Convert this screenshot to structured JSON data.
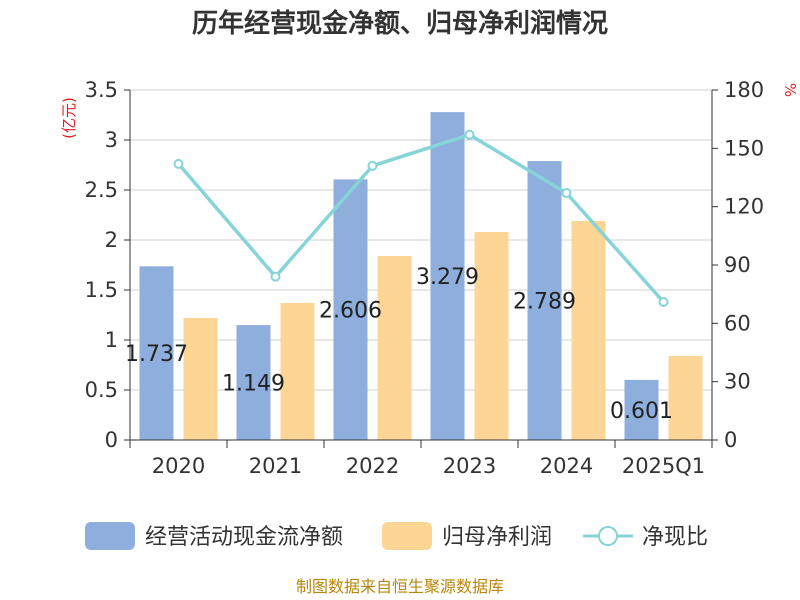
{
  "chart_data": {
    "type": "bar",
    "title": "历年经营现金净额、归母净利润情况",
    "categories": [
      "2020",
      "2021",
      "2022",
      "2023",
      "2024",
      "2025Q1"
    ],
    "series": [
      {
        "name": "经营活动现金流净额",
        "type": "bar",
        "axis": "left",
        "color": "#8eaedd",
        "values": [
          1.737,
          1.149,
          2.606,
          3.279,
          2.789,
          0.601
        ],
        "labels": [
          "1.737",
          "1.149",
          "2.606",
          "3.279",
          "2.789",
          "0.601"
        ]
      },
      {
        "name": "归母净利润",
        "type": "bar",
        "axis": "left",
        "color": "#fdd695",
        "values": [
          1.22,
          1.37,
          1.84,
          2.08,
          2.19,
          0.84
        ]
      },
      {
        "name": "净现比",
        "type": "line",
        "axis": "right",
        "color": "#86d4d8",
        "values": [
          142,
          84,
          141,
          157,
          127,
          71
        ]
      }
    ],
    "ylabel": "(亿元)",
    "ylabel_right": "%",
    "ylim": [
      0,
      3.5
    ],
    "yticks": [
      "0",
      "0.5",
      "1",
      "1.5",
      "2",
      "2.5",
      "3",
      "3.5"
    ],
    "ylim_right": [
      0,
      180
    ],
    "yticks_right": [
      "0",
      "30",
      "60",
      "90",
      "120",
      "150",
      "180"
    ],
    "grid": true,
    "legend_position": "bottom",
    "source": "制图数据来自恒生聚源数据库"
  }
}
